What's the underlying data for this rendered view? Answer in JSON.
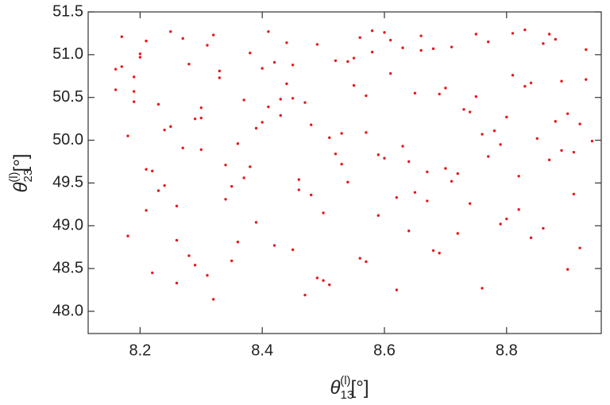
{
  "chart_data": {
    "type": "scatter",
    "x_label": {
      "symbol": "θ",
      "sub": "13",
      "sup": "(l)",
      "unit": "[°]"
    },
    "y_label": {
      "symbol": "θ",
      "sub": "23",
      "sup": "(l)",
      "unit": "[°]"
    },
    "xlim": [
      8.115,
      8.955
    ],
    "ylim": [
      47.74,
      51.5
    ],
    "xticks": [
      8.2,
      8.4,
      8.6,
      8.8
    ],
    "yticks": [
      {
        "value": 48,
        "label": "48.0"
      },
      48.5,
      {
        "value": 49,
        "label": "49.0"
      },
      49.5,
      {
        "value": 50,
        "label": "50.0"
      },
      50.5,
      {
        "value": 51,
        "label": "51.0"
      },
      51.5
    ],
    "color": "#e31a1c",
    "x": [
      8.17,
      8.52,
      8.83,
      8.31,
      8.66,
      8.24,
      8.91,
      8.45,
      8.72,
      8.19,
      8.58,
      8.37,
      8.8,
      8.28,
      8.63,
      8.49,
      8.93,
      8.21,
      8.76,
      8.41,
      8.55,
      8.34,
      8.87,
      8.26,
      8.69,
      8.46,
      8.18,
      8.61,
      8.79,
      8.33,
      8.5,
      8.88,
      8.22,
      8.71,
      8.43,
      8.57,
      8.3,
      8.84,
      8.25,
      8.67,
      8.39,
      8.92,
      8.2,
      8.54,
      8.74,
      8.36,
      8.47,
      8.81,
      8.27,
      8.64,
      8.16,
      8.59,
      8.9,
      8.42,
      8.7,
      8.32,
      8.53,
      8.86,
      8.23,
      8.62,
      8.44,
      8.77,
      8.29,
      8.56,
      8.89,
      8.35,
      8.68,
      8.48,
      8.18,
      8.82,
      8.4,
      8.6,
      8.26,
      8.75,
      8.51,
      8.94,
      8.33,
      8.65,
      8.21,
      8.85,
      8.45,
      8.73,
      8.38,
      8.58,
      8.19,
      8.8,
      8.29,
      8.52,
      8.91,
      8.43,
      8.66,
      8.24,
      8.78,
      8.36,
      8.55,
      8.87,
      8.31,
      8.62,
      8.47,
      8.72,
      8.17,
      8.5,
      8.83,
      8.4,
      8.69,
      8.27,
      8.57,
      8.93,
      8.34,
      8.61,
      8.22,
      8.76,
      8.46,
      8.88,
      8.3,
      8.64,
      8.53,
      8.2,
      8.81,
      8.39,
      8.7,
      8.49,
      8.25,
      8.59,
      8.86,
      8.37,
      8.74,
      8.42,
      8.16,
      8.67,
      8.56,
      8.9,
      8.32,
      8.79,
      8.44,
      8.23,
      8.63,
      8.51,
      8.84,
      8.28,
      8.71,
      8.41,
      8.92,
      8.35,
      8.6,
      8.19,
      8.77,
      8.48,
      8.65,
      8.26,
      8.89,
      8.54,
      8.38,
      8.82,
      8.3,
      8.68,
      8.45,
      8.21,
      8.75,
      8.57
    ],
    "y": [
      51.21,
      49.84,
      50.63,
      48.42,
      51.05,
      50.12,
      49.37,
      50.88,
      48.91,
      50.45,
      51.28,
      49.56,
      50.27,
      48.65,
      49.93,
      51.12,
      50.71,
      49.18,
      48.27,
      50.39,
      50.96,
      49.71,
      51.24,
      48.83,
      50.54,
      49.42,
      50.05,
      51.17,
      49.02,
      50.81,
      48.36,
      50.22,
      49.64,
      51.09,
      50.48,
      48.58,
      49.89,
      50.67,
      51.27,
      49.29,
      50.14,
      48.74,
      51.01,
      49.51,
      50.33,
      49.96,
      48.19,
      50.76,
      51.19,
      49.75,
      50.59,
      49.12,
      48.49,
      50.91,
      49.67,
      51.23,
      50.08,
      48.97,
      50.42,
      49.33,
      51.14,
      49.81,
      50.25,
      48.62,
      50.69,
      49.46,
      51.07,
      50.18,
      48.88,
      49.58,
      50.84,
      51.26,
      49.23,
      50.51,
      48.31,
      49.99,
      50.73,
      49.39,
      51.16,
      50.02,
      48.72,
      50.36,
      49.69,
      51.03,
      50.57,
      49.08,
      48.54,
      50.93,
      49.86,
      50.29,
      51.22,
      49.47,
      50.11,
      48.81,
      50.64,
      49.77,
      51.11,
      48.25,
      50.44,
      49.61,
      50.86,
      49.15,
      51.29,
      50.21,
      48.68,
      49.91,
      50.52,
      51.06,
      49.31,
      50.78,
      48.45,
      50.07,
      49.54,
      51.18,
      50.38,
      48.94,
      49.72,
      50.97,
      51.25,
      49.04,
      50.61,
      48.39,
      50.16,
      49.83,
      51.13,
      50.47,
      49.26,
      48.77,
      50.83,
      49.63,
      51.2,
      50.31,
      48.14,
      49.95,
      50.66,
      49.41,
      51.08,
      50.03,
      48.86,
      50.89,
      49.52,
      51.27,
      50.19,
      48.59,
      49.79,
      50.74,
      51.15,
      49.36,
      50.55,
      48.33,
      49.88,
      50.92,
      51.02,
      49.19,
      50.26,
      48.71,
      50.49,
      49.66,
      51.24,
      50.09
    ]
  }
}
